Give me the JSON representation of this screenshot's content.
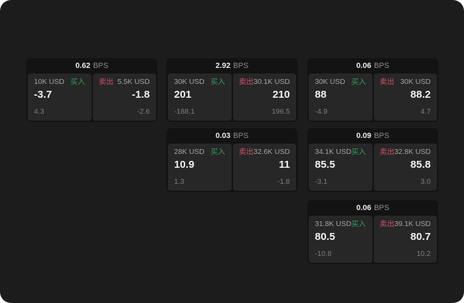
{
  "labels": {
    "bps_unit": "BPS",
    "buy": "买入",
    "sell": "卖出"
  },
  "colors": {
    "page_background": "#1c1c1c",
    "card_background": "#131313",
    "panel_background": "#272727",
    "buy_green": "#2f9e5c",
    "sell_red": "#cf5068",
    "value_white": "#f2f2f2",
    "muted_gray": "#7d7d7d"
  },
  "cards": [
    {
      "bps": "0.62",
      "buy": {
        "amount": "10K USD",
        "value": "-3.7",
        "sub": "4.3"
      },
      "sell": {
        "amount": "5.5K USD",
        "value": "-1.8",
        "sub": "-2.6"
      }
    },
    {
      "bps": "2.92",
      "buy": {
        "amount": "30K USD",
        "value": "201",
        "sub": "-188.1"
      },
      "sell": {
        "amount": "30.1K USD",
        "value": "210",
        "sub": "196.5"
      }
    },
    {
      "bps": "0.06",
      "buy": {
        "amount": "30K USD",
        "value": "88",
        "sub": "-4.9"
      },
      "sell": {
        "amount": "30K USD",
        "value": "88.2",
        "sub": "4.7"
      }
    },
    {
      "bps": "0.03",
      "buy": {
        "amount": "28K USD",
        "value": "10.9",
        "sub": "1.3"
      },
      "sell": {
        "amount": "32.6K USD",
        "value": "11",
        "sub": "-1.8"
      }
    },
    {
      "bps": "0.09",
      "buy": {
        "amount": "34.1K USD",
        "value": "85.5",
        "sub": "-3.1"
      },
      "sell": {
        "amount": "32.8K USD",
        "value": "85.8",
        "sub": "3.0"
      }
    },
    {
      "bps": "0.06",
      "buy": {
        "amount": "31.8K USD",
        "value": "80.5",
        "sub": "-10.8"
      },
      "sell": {
        "amount": "39.1K USD",
        "value": "80.7",
        "sub": "10.2"
      }
    }
  ]
}
